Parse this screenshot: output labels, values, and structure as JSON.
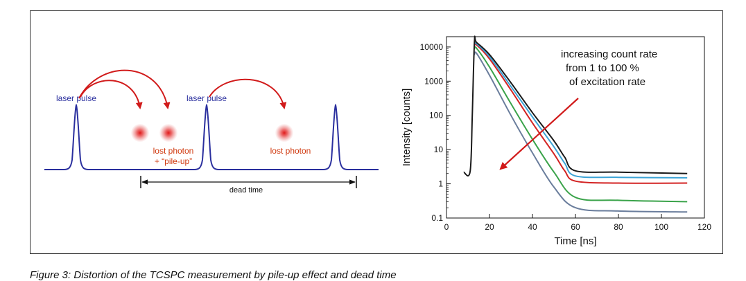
{
  "left_diagram": {
    "laser_pulse_label_1": "laser pulse",
    "laser_pulse_label_2": "laser pulse",
    "lost_photon_label_1_line1": "lost photon",
    "lost_photon_label_1_line2": "+ “pile-up”",
    "lost_photon_label_2": "lost photon",
    "dead_time_label": "dead time",
    "colors": {
      "pulse": "#2a2f9e",
      "arrow": "#d11a1a",
      "photon": "#e03030",
      "label_red": "#d03a10",
      "label_blue": "#2a2f9e"
    }
  },
  "chart_data": {
    "type": "line",
    "xlabel": "Time [ns]",
    "ylabel": "Intensity [counts]",
    "xlim": [
      0,
      120
    ],
    "ylim": [
      0.1,
      20000
    ],
    "yscale": "log",
    "xticks": [
      0,
      20,
      40,
      60,
      80,
      100,
      120
    ],
    "yticks": [
      0.1,
      1,
      10,
      100,
      1000,
      10000
    ],
    "ytick_labels": [
      "0.1",
      "1",
      "10",
      "100",
      "1000",
      "10000"
    ],
    "annotation": [
      "increasing count rate",
      "from 1 to 100 %",
      "of excitation rate"
    ],
    "series": [
      {
        "color": "#1a1a1a",
        "x": [
          8,
          11,
          12,
          13,
          14,
          20,
          30,
          40,
          50,
          55,
          60,
          80,
          112
        ],
        "y": [
          2.2,
          2.3,
          100,
          14000,
          13500,
          6000,
          900,
          120,
          18,
          6,
          2.4,
          2.2,
          2.0
        ]
      },
      {
        "color": "#3ba3d6",
        "x": [
          13,
          14,
          20,
          30,
          40,
          50,
          55,
          60,
          80,
          112
        ],
        "y": [
          12000,
          12500,
          5200,
          700,
          90,
          12,
          4,
          1.7,
          1.55,
          1.5
        ]
      },
      {
        "color": "#d32222",
        "x": [
          13,
          14,
          20,
          30,
          40,
          50,
          55,
          60,
          80,
          112
        ],
        "y": [
          11000,
          11500,
          4500,
          550,
          60,
          7.5,
          2.4,
          1.2,
          1.05,
          1.05
        ]
      },
      {
        "color": "#3aa34a",
        "x": [
          13,
          14,
          20,
          30,
          40,
          50,
          60,
          80,
          112
        ],
        "y": [
          9000,
          9200,
          2600,
          220,
          20,
          2.2,
          0.4,
          0.33,
          0.3
        ]
      },
      {
        "color": "#6a7d9c",
        "x": [
          13,
          14,
          20,
          30,
          40,
          50,
          60,
          80,
          112
        ],
        "y": [
          6000,
          6500,
          1500,
          100,
          8,
          0.8,
          0.2,
          0.16,
          0.15
        ]
      }
    ]
  },
  "caption": "Figure 3: Distortion of the TCSPC measurement by pile-up effect and dead time"
}
